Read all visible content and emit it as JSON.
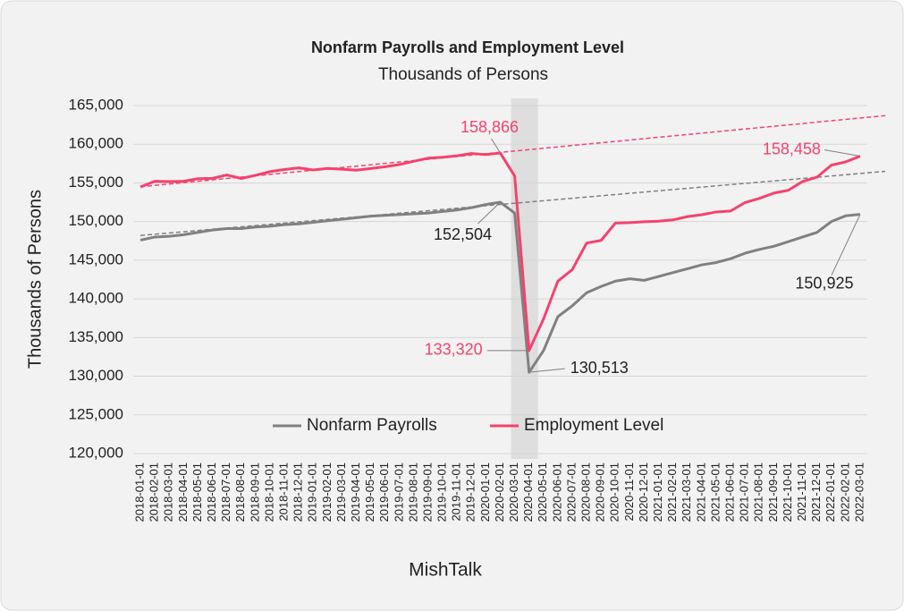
{
  "chart_data": {
    "type": "line",
    "title": "Nonfarm Payrolls and Employment Level",
    "subtitle": "Thousands of Persons",
    "y_label": "Thousands of Persons",
    "x_label": "MishTalk",
    "categories": [
      "2018-01-01",
      "2018-02-01",
      "2018-03-01",
      "2018-04-01",
      "2018-05-01",
      "2018-06-01",
      "2018-07-01",
      "2018-08-01",
      "2018-09-01",
      "2018-10-01",
      "2018-11-01",
      "2018-12-01",
      "2019-01-01",
      "2019-02-01",
      "2019-03-01",
      "2019-04-01",
      "2019-05-01",
      "2019-06-01",
      "2019-07-01",
      "2019-08-01",
      "2019-09-01",
      "2019-10-01",
      "2019-11-01",
      "2019-12-01",
      "2020-01-01",
      "2020-02-01",
      "2020-03-01",
      "2020-04-01",
      "2020-05-01",
      "2020-06-01",
      "2020-07-01",
      "2020-08-01",
      "2020-09-01",
      "2020-10-01",
      "2020-11-01",
      "2020-12-01",
      "2021-01-01",
      "2021-02-01",
      "2021-03-01",
      "2021-04-01",
      "2021-05-01",
      "2021-06-01",
      "2021-07-01",
      "2021-08-01",
      "2021-09-01",
      "2021-10-01",
      "2021-11-01",
      "2021-12-01",
      "2022-01-01",
      "2022-02-01",
      "2022-03-01"
    ],
    "series": [
      {
        "name": "Nonfarm Payrolls",
        "color": "#808080",
        "values": [
          147600,
          148000,
          148100,
          148300,
          148600,
          148900,
          149100,
          149100,
          149300,
          149400,
          149600,
          149700,
          149900,
          150100,
          150300,
          150500,
          150700,
          150800,
          150900,
          151000,
          151100,
          151300,
          151500,
          151800,
          152200,
          152504,
          151100,
          130513,
          133300,
          137700,
          139100,
          140800,
          141600,
          142300,
          142600,
          142400,
          142900,
          143400,
          143900,
          144400,
          144700,
          145200,
          145900,
          146400,
          146800,
          147400,
          148000,
          148600,
          150000,
          150750,
          150925
        ],
        "value_labels": [
          null,
          null,
          null,
          null,
          null,
          null,
          null,
          null,
          null,
          null,
          null,
          null,
          null,
          null,
          null,
          null,
          null,
          null,
          null,
          null,
          null,
          null,
          null,
          null,
          null,
          "152,504",
          null,
          "130,513",
          null,
          null,
          null,
          null,
          null,
          null,
          null,
          null,
          null,
          null,
          null,
          null,
          null,
          null,
          null,
          null,
          null,
          null,
          null,
          null,
          null,
          null,
          "150,925"
        ],
        "trend": [
          148200,
          156220
        ]
      },
      {
        "name": "Employment Level",
        "color": "#f4426e",
        "values": [
          154482,
          155213,
          155160,
          155216,
          155539,
          155592,
          156024,
          155574,
          155982,
          156454,
          156729,
          156949,
          156669,
          156878,
          156768,
          156645,
          156853,
          157088,
          157376,
          157804,
          158198,
          158324,
          158509,
          158803,
          158659,
          158866,
          155880,
          133320,
          137381,
          142295,
          143785,
          147220,
          147559,
          149807,
          149854,
          149973,
          150048,
          150217,
          150640,
          150888,
          151240,
          151365,
          152455,
          152988,
          153680,
          154039,
          155175,
          155732,
          157295,
          157722,
          158458
        ],
        "value_labels": [
          null,
          null,
          null,
          null,
          null,
          null,
          null,
          null,
          null,
          null,
          null,
          null,
          null,
          null,
          null,
          null,
          null,
          null,
          null,
          null,
          null,
          null,
          null,
          null,
          null,
          "158,866",
          null,
          "133,320",
          null,
          null,
          null,
          null,
          null,
          null,
          null,
          null,
          null,
          null,
          null,
          null,
          null,
          null,
          null,
          null,
          null,
          null,
          null,
          null,
          null,
          null,
          "158,458"
        ],
        "trend": [
          154500,
          163390
        ]
      }
    ],
    "shaded_range": [
      "2020-03-01",
      "2020-04-01"
    ],
    "ylim": [
      120000,
      165000
    ],
    "yticks": [
      {
        "value": 120000,
        "label": "120,000"
      },
      {
        "value": 125000,
        "label": "125,000"
      },
      {
        "value": 130000,
        "label": "130,000"
      },
      {
        "value": 135000,
        "label": "135,000"
      },
      {
        "value": 140000,
        "label": "140,000"
      },
      {
        "value": 145000,
        "label": "145,000"
      },
      {
        "value": 150000,
        "label": "150,000"
      },
      {
        "value": 155000,
        "label": "155,000"
      },
      {
        "value": 160000,
        "label": "160,000"
      },
      {
        "value": 165000,
        "label": "165,000"
      }
    ],
    "grid": true,
    "legend": "bottom"
  }
}
